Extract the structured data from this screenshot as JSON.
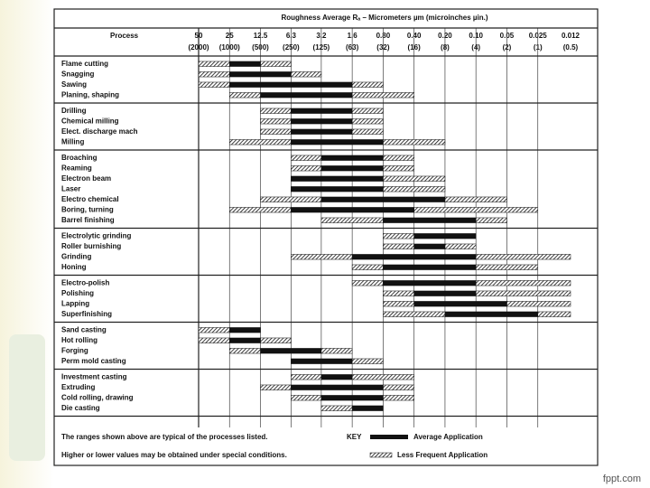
{
  "header": {
    "title": "Roughness Average Rₐ – Micrometers µm (microinches µin.)",
    "process_label": "Process",
    "columns": [
      50,
      25,
      12.5,
      6.3,
      3.2,
      1.6,
      {
        "value": 0.8,
        "label": "0.80"
      },
      {
        "value": 0.4,
        "label": "0.40"
      },
      {
        "value": 0.2,
        "label": "0.20"
      },
      {
        "value": 0.1,
        "label": "0.10"
      },
      0.05,
      0.025,
      0.012
    ],
    "microinches": [
      "(2000)",
      "(1000)",
      "(500)",
      "(250)",
      "(125)",
      "(63)",
      "(32)",
      "(16)",
      "(8)",
      "(4)",
      "(2)",
      "(1)",
      "(0.5)"
    ]
  },
  "groups": [
    {
      "rows": [
        {
          "process": "Flame cutting",
          "average": [
            [
              25,
              12.5
            ]
          ],
          "less_frequent": [
            [
              50,
              25
            ],
            [
              12.5,
              6.3
            ]
          ]
        },
        {
          "process": "Snagging",
          "average": [
            [
              25,
              6.3
            ]
          ],
          "less_frequent": [
            [
              50,
              25
            ],
            [
              6.3,
              3.2
            ]
          ]
        },
        {
          "process": "Sawing",
          "average": [
            [
              25,
              1.6
            ]
          ],
          "less_frequent": [
            [
              50,
              25
            ],
            [
              1.6,
              0.8
            ]
          ]
        },
        {
          "process": "Planing, shaping",
          "average": [
            [
              12.5,
              1.6
            ]
          ],
          "less_frequent": [
            [
              25,
              12.5
            ],
            [
              1.6,
              0.4
            ]
          ]
        }
      ]
    },
    {
      "rows": [
        {
          "process": "Drilling",
          "average": [
            [
              6.3,
              1.6
            ]
          ],
          "less_frequent": [
            [
              12.5,
              6.3
            ],
            [
              1.6,
              0.8
            ]
          ]
        },
        {
          "process": "Chemical milling",
          "average": [
            [
              6.3,
              1.6
            ]
          ],
          "less_frequent": [
            [
              12.5,
              6.3
            ],
            [
              1.6,
              0.8
            ]
          ]
        },
        {
          "process": "Elect. discharge mach",
          "average": [
            [
              6.3,
              1.6
            ]
          ],
          "less_frequent": [
            [
              12.5,
              6.3
            ],
            [
              1.6,
              0.8
            ]
          ]
        },
        {
          "process": "Milling",
          "average": [
            [
              6.3,
              0.8
            ]
          ],
          "less_frequent": [
            [
              25,
              6.3
            ],
            [
              0.8,
              0.2
            ]
          ]
        }
      ]
    },
    {
      "rows": [
        {
          "process": "Broaching",
          "average": [
            [
              3.2,
              0.8
            ]
          ],
          "less_frequent": [
            [
              6.3,
              3.2
            ],
            [
              0.8,
              0.4
            ]
          ]
        },
        {
          "process": "Reaming",
          "average": [
            [
              3.2,
              0.8
            ]
          ],
          "less_frequent": [
            [
              6.3,
              3.2
            ],
            [
              0.8,
              0.4
            ]
          ]
        },
        {
          "process": "Electron beam",
          "average": [
            [
              6.3,
              0.8
            ]
          ],
          "less_frequent": [
            [
              0.8,
              0.2
            ]
          ]
        },
        {
          "process": "Laser",
          "average": [
            [
              6.3,
              0.8
            ]
          ],
          "less_frequent": [
            [
              0.8,
              0.2
            ]
          ]
        },
        {
          "process": "Electro chemical",
          "average": [
            [
              3.2,
              0.2
            ]
          ],
          "less_frequent": [
            [
              12.5,
              3.2
            ],
            [
              0.2,
              0.05
            ]
          ]
        },
        {
          "process": "Boring, turning",
          "average": [
            [
              6.3,
              0.4
            ]
          ],
          "less_frequent": [
            [
              25,
              6.3
            ],
            [
              0.4,
              0.025
            ]
          ]
        },
        {
          "process": "Barrel finishing",
          "average": [
            [
              0.8,
              0.1
            ]
          ],
          "less_frequent": [
            [
              3.2,
              0.8
            ],
            [
              0.1,
              0.05
            ]
          ]
        }
      ]
    },
    {
      "rows": [
        {
          "process": "Electrolytic grinding",
          "average": [
            [
              0.4,
              0.1
            ]
          ],
          "less_frequent": [
            [
              0.8,
              0.4
            ]
          ]
        },
        {
          "process": "Roller burnishing",
          "average": [
            [
              0.4,
              0.2
            ]
          ],
          "less_frequent": [
            [
              0.8,
              0.4
            ],
            [
              0.2,
              0.1
            ]
          ]
        },
        {
          "process": "Grinding",
          "average": [
            [
              1.6,
              0.1
            ]
          ],
          "less_frequent": [
            [
              6.3,
              1.6
            ],
            [
              0.1,
              0.012
            ]
          ]
        },
        {
          "process": "Honing",
          "average": [
            [
              0.8,
              0.1
            ]
          ],
          "less_frequent": [
            [
              1.6,
              0.8
            ],
            [
              0.1,
              0.025
            ]
          ]
        }
      ]
    },
    {
      "rows": [
        {
          "process": "Electro-polish",
          "average": [
            [
              0.8,
              0.1
            ]
          ],
          "less_frequent": [
            [
              1.6,
              0.8
            ],
            [
              0.1,
              0.012
            ]
          ]
        },
        {
          "process": "Polishing",
          "average": [
            [
              0.4,
              0.1
            ]
          ],
          "less_frequent": [
            [
              0.8,
              0.4
            ],
            [
              0.1,
              0.012
            ]
          ]
        },
        {
          "process": "Lapping",
          "average": [
            [
              0.4,
              0.05
            ]
          ],
          "less_frequent": [
            [
              0.8,
              0.4
            ],
            [
              0.05,
              0.012
            ]
          ]
        },
        {
          "process": "Superfinishing",
          "average": [
            [
              0.2,
              0.025
            ]
          ],
          "less_frequent": [
            [
              0.8,
              0.2
            ],
            [
              0.025,
              0.012
            ]
          ]
        }
      ]
    },
    {
      "rows": [
        {
          "process": "Sand casting",
          "average": [
            [
              25,
              12.5
            ]
          ],
          "less_frequent": [
            [
              50,
              25
            ]
          ]
        },
        {
          "process": "Hot rolling",
          "average": [
            [
              25,
              12.5
            ]
          ],
          "less_frequent": [
            [
              50,
              25
            ],
            [
              12.5,
              6.3
            ]
          ]
        },
        {
          "process": "Forging",
          "average": [
            [
              12.5,
              3.2
            ]
          ],
          "less_frequent": [
            [
              25,
              12.5
            ],
            [
              3.2,
              1.6
            ]
          ]
        },
        {
          "process": "Perm mold casting",
          "average": [
            [
              6.3,
              1.6
            ]
          ],
          "less_frequent": [
            [
              1.6,
              0.8
            ]
          ]
        }
      ]
    },
    {
      "rows": [
        {
          "process": "Investment casting",
          "average": [
            [
              3.2,
              1.6
            ]
          ],
          "less_frequent": [
            [
              6.3,
              3.2
            ],
            [
              1.6,
              0.4
            ]
          ]
        },
        {
          "process": "Extruding",
          "average": [
            [
              6.3,
              0.8
            ]
          ],
          "less_frequent": [
            [
              12.5,
              6.3
            ],
            [
              0.8,
              0.4
            ]
          ]
        },
        {
          "process": "Cold rolling, drawing",
          "average": [
            [
              3.2,
              0.8
            ]
          ],
          "less_frequent": [
            [
              6.3,
              3.2
            ],
            [
              0.8,
              0.4
            ]
          ]
        },
        {
          "process": "Die casting",
          "average": [
            [
              1.6,
              0.8
            ]
          ],
          "less_frequent": [
            [
              3.2,
              1.6
            ]
          ]
        }
      ]
    }
  ],
  "footer": {
    "note1": "The ranges shown above are typical of the processes listed.",
    "note2": "Higher or lower values may be obtained under special conditions.",
    "key": "KEY",
    "average": "Average Application",
    "less_frequent": "Less Frequent Application"
  },
  "brand": "fppt.com"
}
